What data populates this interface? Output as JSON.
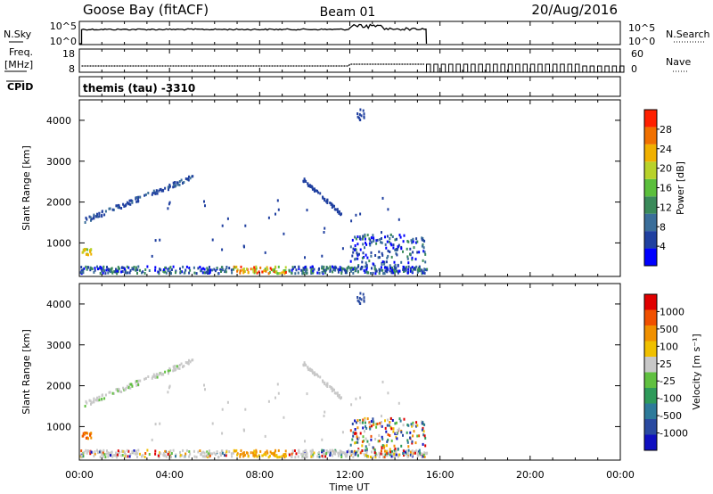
{
  "header": {
    "station": "Goose Bay (fitACF)",
    "beam": "Beam 01",
    "date": "20/Aug/2016"
  },
  "noise_panel": {
    "left_label": "N.Sky",
    "right_label": "N.Search",
    "left_ticks": [
      "10^5",
      "10^0"
    ],
    "right_ticks": [
      "10^5",
      "10^0"
    ]
  },
  "freq_panel": {
    "left_label_1": "Freq.",
    "left_label_2": "[MHz]",
    "right_label": "Nave",
    "left_ticks": [
      "18",
      "8"
    ],
    "right_ticks": [
      "60",
      "0"
    ]
  },
  "cpid": {
    "label": "CPID",
    "value": "themis (tau) -3310"
  },
  "power_panel": {
    "ylabel": "Slant Range [km]",
    "yticks": [
      "4000",
      "3000",
      "2000",
      "1000"
    ],
    "colorbar_label": "Power [dB]",
    "colorbar_ticks": [
      "28",
      "24",
      "20",
      "16",
      "12",
      "8",
      "4"
    ],
    "colors": [
      "#0000ff",
      "#2040a0",
      "#3a6e9a",
      "#3a8a5a",
      "#5bbf3c",
      "#b8d22a",
      "#f0b000",
      "#f07000",
      "#ff2000"
    ]
  },
  "velocity_panel": {
    "ylabel": "Slant Range [km]",
    "yticks": [
      "4000",
      "3000",
      "2000",
      "1000"
    ],
    "colorbar_label": "Velocity [m s⁻¹]",
    "colorbar_ticks": [
      "1000",
      "500",
      "100",
      "25",
      "-25",
      "-100",
      "-500",
      "-1000"
    ],
    "colors": [
      "#1010c0",
      "#2a4aa0",
      "#2d7a9a",
      "#2e9a5a",
      "#60c040",
      "#c8c8c8",
      "#f0c000",
      "#f09000",
      "#f05000",
      "#e00000"
    ]
  },
  "xaxis": {
    "label": "Time UT",
    "ticks": [
      "00:00",
      "04:00",
      "08:00",
      "12:00",
      "16:00",
      "20:00",
      "00:00"
    ]
  },
  "chart_data": {
    "type": "heatmap",
    "x_unit": "hours UT",
    "y_unit": "km",
    "xlim": [
      0,
      24
    ],
    "ylim": [
      180,
      4500
    ],
    "data_end_hour": 15.4,
    "scatter_features": [
      {
        "name": "near_range_band",
        "x": [
          0,
          15.4
        ],
        "y": [
          250,
          420
        ]
      },
      {
        "name": "arc_morning",
        "x": [
          0.1,
          5
        ],
        "y": [
          1500,
          2600
        ]
      },
      {
        "name": "arc_noon",
        "x": [
          9.8,
          11.7
        ],
        "y": [
          1650,
          2600
        ]
      },
      {
        "name": "afternoon_patch",
        "x": [
          12,
          15.4
        ],
        "y": [
          300,
          1200
        ]
      },
      {
        "name": "far_range_noon",
        "x": [
          12.2,
          12.6
        ],
        "y": [
          4000,
          4300
        ]
      }
    ]
  }
}
